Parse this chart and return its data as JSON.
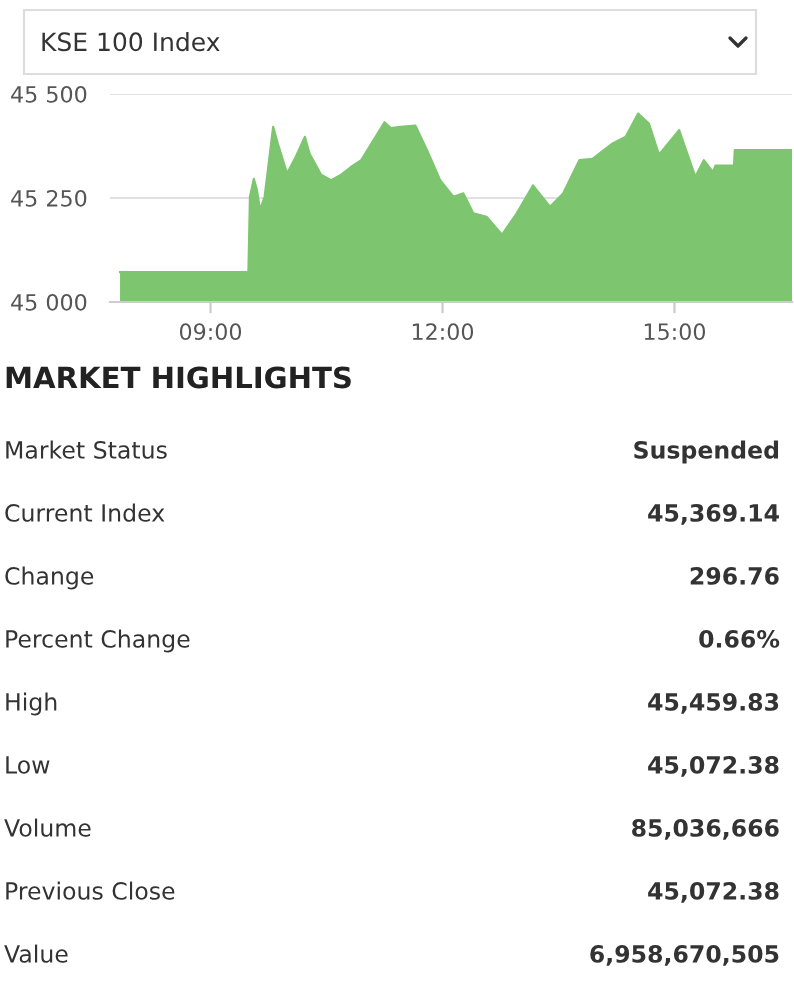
{
  "chart_data": [
    {
      "type": "area",
      "title": "KSE 100 Index",
      "color": "#7dc56f",
      "grid": "y",
      "x": [
        7.83,
        9.49,
        9.51,
        9.56,
        9.6,
        9.64,
        9.7,
        9.81,
        9.87,
        9.99,
        10.09,
        10.22,
        10.28,
        10.43,
        10.56,
        10.69,
        10.82,
        10.95,
        11.25,
        11.33,
        11.46,
        11.65,
        11.8,
        11.97,
        12.14,
        12.27,
        12.4,
        12.57,
        12.77,
        12.96,
        13.17,
        13.39,
        13.56,
        13.77,
        13.94,
        14.2,
        14.37,
        14.53,
        14.67,
        14.8,
        15.06,
        15.27,
        15.38,
        15.5,
        15.53,
        15.77,
        15.78,
        16.52
      ],
      "values": [
        45072,
        45072,
        45253,
        45296,
        45269,
        45221,
        45253,
        45421,
        45381,
        45309,
        45344,
        45397,
        45357,
        45306,
        45293,
        45306,
        45325,
        45341,
        45432,
        45418,
        45421,
        45424,
        45365,
        45293,
        45253,
        45261,
        45213,
        45205,
        45162,
        45213,
        45280,
        45229,
        45261,
        45341,
        45344,
        45381,
        45397,
        45453,
        45429,
        45354,
        45413,
        45301,
        45341,
        45312,
        45328,
        45328,
        45365,
        45365
      ],
      "xlim": [
        7.7,
        16.52
      ],
      "ylim": [
        45000,
        45500
      ],
      "xticks": [
        {
          "value": 9,
          "label": "09:00"
        },
        {
          "value": 12,
          "label": "12:00"
        },
        {
          "value": 15,
          "label": "15:00"
        }
      ],
      "yticks": [
        {
          "value": 45000,
          "label": "45 000"
        },
        {
          "value": 45250,
          "label": "45 250"
        },
        {
          "value": 45500,
          "label": "45 500"
        }
      ]
    },
    {
      "type": "other",
      "title": "MARKET HIGHLIGHTS",
      "categories": [
        "Market Status",
        "Current Index",
        "Change",
        "Percent Change",
        "High",
        "Low",
        "Volume",
        "Previous Close",
        "Value"
      ],
      "value_labels": [
        "Suspended",
        "45,369.14",
        "296.76",
        "0.66%",
        "45,459.83",
        "45,072.38",
        "85,036,666",
        "45,072.38",
        "6,958,670,505"
      ]
    }
  ]
}
